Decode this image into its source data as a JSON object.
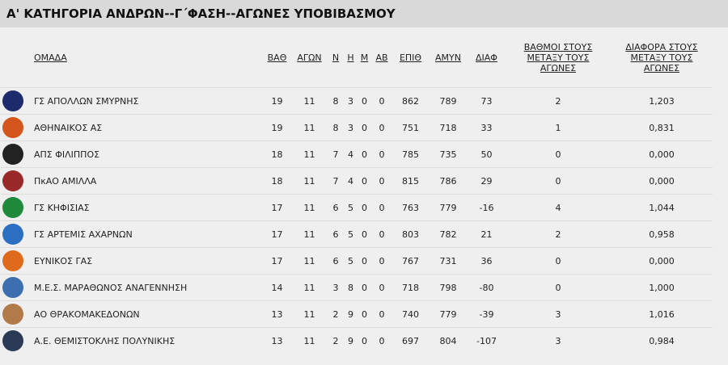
{
  "title": "Α' ΚΑΤΗΓΟΡΙΑ ΑΝΔΡΩΝ--Γ΄ΦΑΣΗ--ΑΓΩΝΕΣ ΥΠΟΒΙΒΑΣΜΟΥ",
  "headers": {
    "team": "ΟΜΑΔΑ",
    "pts": "ΒΑΘ",
    "gp": "ΑΓΩΝ",
    "w": "Ν",
    "l": "Η",
    "m": "Μ",
    "ab": "ΑΒ",
    "pf": "ΕΠΙΘ",
    "pa": "ΑΜΥΝ",
    "diff": "ΔΙΑΦ",
    "h2h_pts": "ΒΑΘΜΟΙ ΣΤΟΥΣ ΜΕΤΑΞΥ ΤΟΥΣ ΑΓΩΝΕΣ",
    "h2h_diff": "ΔΙΑΦΟΡΑ ΣΤΟΥΣ ΜΕΤΑΞΥ ΤΟΥΣ ΑΓΩΝΕΣ"
  },
  "rows": [
    {
      "team": "ΓΣ ΑΠΟΛΛΩΝ ΣΜΥΡΝΗΣ",
      "pts": "19",
      "gp": "11",
      "w": "8",
      "l": "3",
      "m": "0",
      "ab": "0",
      "pf": "862",
      "pa": "789",
      "diff": "73",
      "h2h_pts": "2",
      "h2h_diff": "1,203",
      "logo_color": "#1d2a6b"
    },
    {
      "team": "ΑΘΗΝΑΙΚΟΣ ΑΣ",
      "pts": "19",
      "gp": "11",
      "w": "8",
      "l": "3",
      "m": "0",
      "ab": "0",
      "pf": "751",
      "pa": "718",
      "diff": "33",
      "h2h_pts": "1",
      "h2h_diff": "0,831",
      "logo_color": "#d4561c"
    },
    {
      "team": "ΑΠΣ ΦΙΛΙΠΠΟΣ",
      "pts": "18",
      "gp": "11",
      "w": "7",
      "l": "4",
      "m": "0",
      "ab": "0",
      "pf": "785",
      "pa": "735",
      "diff": "50",
      "h2h_pts": "0",
      "h2h_diff": "0,000",
      "logo_color": "#222222"
    },
    {
      "team": "ΠκΑΟ ΑΜΙΛΛΑ",
      "pts": "18",
      "gp": "11",
      "w": "7",
      "l": "4",
      "m": "0",
      "ab": "0",
      "pf": "815",
      "pa": "786",
      "diff": "29",
      "h2h_pts": "0",
      "h2h_diff": "0,000",
      "logo_color": "#9a2a2a"
    },
    {
      "team": "ΓΣ ΚΗΦΙΣΙΑΣ",
      "pts": "17",
      "gp": "11",
      "w": "6",
      "l": "5",
      "m": "0",
      "ab": "0",
      "pf": "763",
      "pa": "779",
      "diff": "-16",
      "h2h_pts": "4",
      "h2h_diff": "1,044",
      "logo_color": "#1f8a3c"
    },
    {
      "team": "ΓΣ ΑΡΤΕΜΙΣ ΑΧΑΡΝΩΝ",
      "pts": "17",
      "gp": "11",
      "w": "6",
      "l": "5",
      "m": "0",
      "ab": "0",
      "pf": "803",
      "pa": "782",
      "diff": "21",
      "h2h_pts": "2",
      "h2h_diff": "0,958",
      "logo_color": "#2a6fc2"
    },
    {
      "team": "ΕΥΝΙΚΟΣ ΓΑΣ",
      "pts": "17",
      "gp": "11",
      "w": "6",
      "l": "5",
      "m": "0",
      "ab": "0",
      "pf": "767",
      "pa": "731",
      "diff": "36",
      "h2h_pts": "0",
      "h2h_diff": "0,000",
      "logo_color": "#e06a1c"
    },
    {
      "team": "Μ.Ε.Σ. ΜΑΡΑΘΩΝΟΣ ΑΝΑΓΕΝΝΗΣΗ",
      "pts": "14",
      "gp": "11",
      "w": "3",
      "l": "8",
      "m": "0",
      "ab": "0",
      "pf": "718",
      "pa": "798",
      "diff": "-80",
      "h2h_pts": "0",
      "h2h_diff": "1,000",
      "logo_color": "#3d6fb0"
    },
    {
      "team": "ΑΟ ΘΡΑΚΟΜΑΚΕΔΟΝΩΝ",
      "pts": "13",
      "gp": "11",
      "w": "2",
      "l": "9",
      "m": "0",
      "ab": "0",
      "pf": "740",
      "pa": "779",
      "diff": "-39",
      "h2h_pts": "3",
      "h2h_diff": "1,016",
      "logo_color": "#b07a4a"
    },
    {
      "team": "Α.Ε. ΘΕΜΙΣΤΟΚΛΗΣ ΠΟΛΥΝΙΚΗΣ",
      "pts": "13",
      "gp": "11",
      "w": "2",
      "l": "9",
      "m": "0",
      "ab": "0",
      "pf": "697",
      "pa": "804",
      "diff": "-107",
      "h2h_pts": "3",
      "h2h_diff": "0,984",
      "logo_color": "#2b3a55"
    }
  ]
}
